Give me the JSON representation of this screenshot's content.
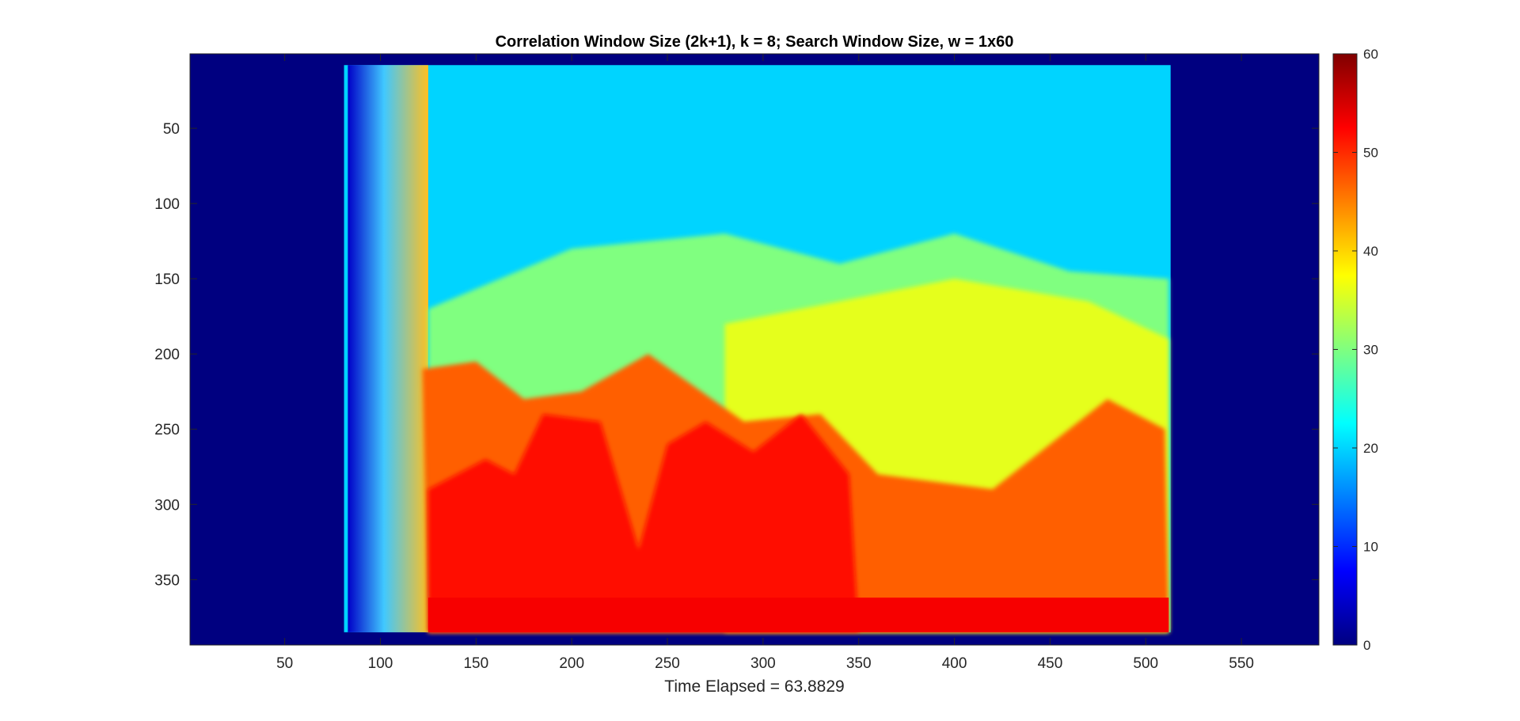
{
  "chart_data": {
    "type": "heatmap",
    "title": "Correlation Window Size (2k+1), k = 8; Search Window Size, w = 1x60",
    "xlabel": "Time Elapsed = 63.8829",
    "ylabel": "",
    "xlim": [
      0.5,
      590.5
    ],
    "ylim": [
      0.5,
      393.5
    ],
    "y_reversed": true,
    "x_ticks": [
      50,
      100,
      150,
      200,
      250,
      300,
      350,
      400,
      450,
      500,
      550
    ],
    "y_ticks": [
      50,
      100,
      150,
      200,
      250,
      300,
      350
    ],
    "colormap": "jet",
    "clim": [
      0,
      60
    ],
    "colorbar_ticks": [
      0,
      10,
      20,
      30,
      40,
      50,
      60
    ],
    "grid": false,
    "regions": [
      {
        "shape": "rect",
        "x": [
          0.5,
          590.5
        ],
        "y": [
          0.5,
          393.5
        ],
        "value": 0
      },
      {
        "shape": "rect",
        "x": [
          81,
          513
        ],
        "y": [
          8,
          385
        ],
        "value": 20
      },
      {
        "shape": "rect",
        "x": [
          83,
          125
        ],
        "y": [
          8,
          385
        ],
        "value": 3,
        "gradient_to": 32
      },
      {
        "shape": "poly",
        "points": [
          [
            125,
            385
          ],
          [
            125,
            170
          ],
          [
            200,
            130
          ],
          [
            280,
            120
          ],
          [
            340,
            140
          ],
          [
            400,
            120
          ],
          [
            460,
            145
          ],
          [
            512,
            150
          ],
          [
            512,
            385
          ]
        ],
        "value": 30
      },
      {
        "shape": "poly",
        "points": [
          [
            280,
            385
          ],
          [
            280,
            180
          ],
          [
            340,
            165
          ],
          [
            400,
            150
          ],
          [
            470,
            165
          ],
          [
            512,
            190
          ],
          [
            512,
            385
          ]
        ],
        "value": 36
      },
      {
        "shape": "poly",
        "points": [
          [
            125,
            385
          ],
          [
            122,
            210
          ],
          [
            150,
            205
          ],
          [
            175,
            230
          ],
          [
            205,
            225
          ],
          [
            240,
            200
          ],
          [
            290,
            245
          ],
          [
            330,
            240
          ],
          [
            360,
            280
          ],
          [
            420,
            290
          ],
          [
            480,
            230
          ],
          [
            510,
            250
          ],
          [
            512,
            385
          ]
        ],
        "value": 47
      },
      {
        "shape": "poly",
        "points": [
          [
            125,
            385
          ],
          [
            125,
            290
          ],
          [
            155,
            270
          ],
          [
            170,
            280
          ],
          [
            185,
            240
          ],
          [
            215,
            245
          ],
          [
            235,
            330
          ],
          [
            250,
            260
          ],
          [
            270,
            245
          ],
          [
            295,
            265
          ],
          [
            320,
            240
          ],
          [
            345,
            280
          ],
          [
            350,
            385
          ]
        ],
        "value": 52
      },
      {
        "shape": "rect",
        "x": [
          125,
          512
        ],
        "y": [
          362,
          385
        ],
        "value": 53
      }
    ]
  }
}
